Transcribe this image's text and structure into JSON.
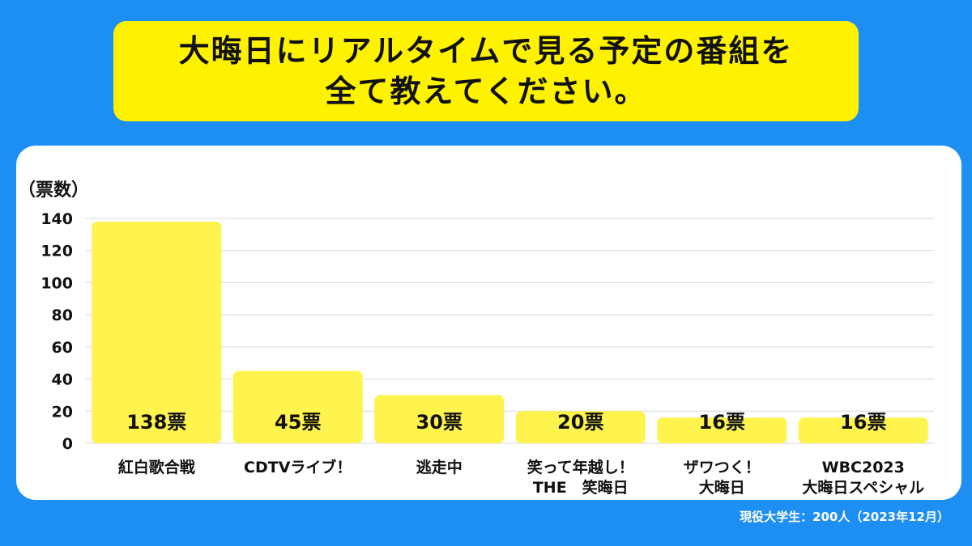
{
  "title": {
    "line1": "大晦日にリアルタイムで見る予定の番組を",
    "line2": "全て教えてください。"
  },
  "footnote": "現役大学生：200人（2023年12月）",
  "colors": {
    "background": "#1d8ef2",
    "title_box": "#fff200",
    "bar": "#fff34d",
    "panel": "#ffffff"
  },
  "chart_data": {
    "type": "bar",
    "ylabel": "（票数）",
    "xlabel": "",
    "ylim": [
      0,
      140
    ],
    "yticks": [
      0,
      20,
      40,
      60,
      80,
      100,
      120,
      140
    ],
    "grid": true,
    "categories": [
      [
        "紅白歌合戦"
      ],
      [
        "CDTVライブ！"
      ],
      [
        "逃走中"
      ],
      [
        "笑って年越し！",
        "THE　笑晦日"
      ],
      [
        "ザワつく！",
        "大晦日"
      ],
      [
        "WBC2023",
        "大晦日スペシャル"
      ]
    ],
    "values": [
      138,
      45,
      30,
      20,
      16,
      16
    ],
    "data_labels": [
      "138票",
      "45票",
      "30票",
      "20票",
      "16票",
      "16票"
    ]
  }
}
